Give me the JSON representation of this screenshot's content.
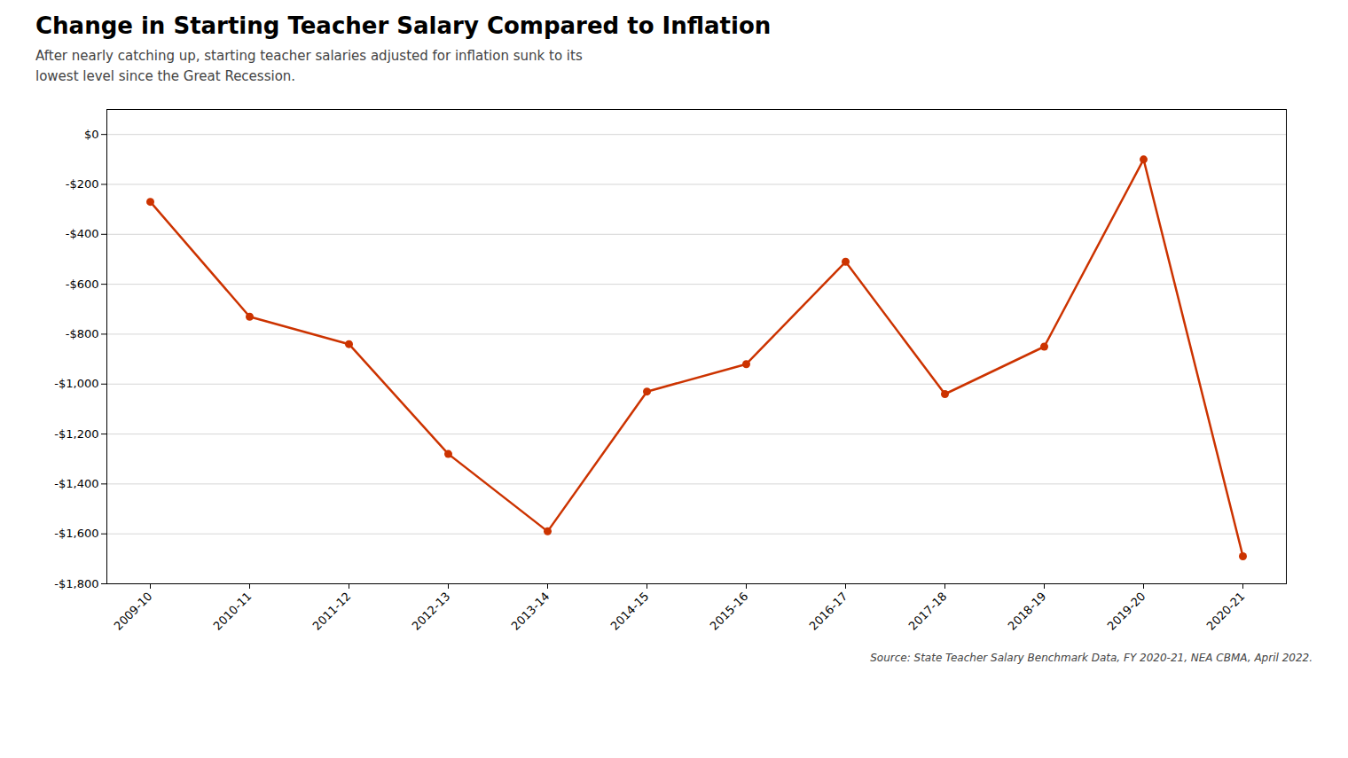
{
  "chart_data": {
    "type": "line",
    "title": "Change in Starting Teacher Salary Compared to Inflation",
    "subtitle": "After nearly catching up, starting teacher salaries adjusted for inflation sunk to its\nlowest level since the Great Recession.",
    "source": "Source: State Teacher Salary Benchmark Data, FY 2020-21, NEA CBMA, April 2022.",
    "categories": [
      "2009-10",
      "2010-11",
      "2011-12",
      "2012-13",
      "2013-14",
      "2014-15",
      "2015-16",
      "2016-17",
      "2017-18",
      "2018-19",
      "2019-20",
      "2020-21"
    ],
    "values": [
      -270,
      -730,
      -840,
      -1280,
      -1590,
      -1030,
      -920,
      -510,
      -1040,
      -850,
      -100,
      -1690
    ],
    "color": "#CC3300",
    "marker": "circle",
    "ylim": [
      -1800,
      100
    ],
    "yticks": [
      {
        "value": 0,
        "label": "$0"
      },
      {
        "value": -200,
        "label": "-$200"
      },
      {
        "value": -400,
        "label": "-$400"
      },
      {
        "value": -600,
        "label": "-$600"
      },
      {
        "value": -800,
        "label": "-$800"
      },
      {
        "value": -1000,
        "label": "-$1,000"
      },
      {
        "value": -1200,
        "label": "-$1,200"
      },
      {
        "value": -1400,
        "label": "-$1,400"
      },
      {
        "value": -1600,
        "label": "-$1,600"
      },
      {
        "value": -1800,
        "label": "-$1,800"
      }
    ],
    "grid": true
  }
}
